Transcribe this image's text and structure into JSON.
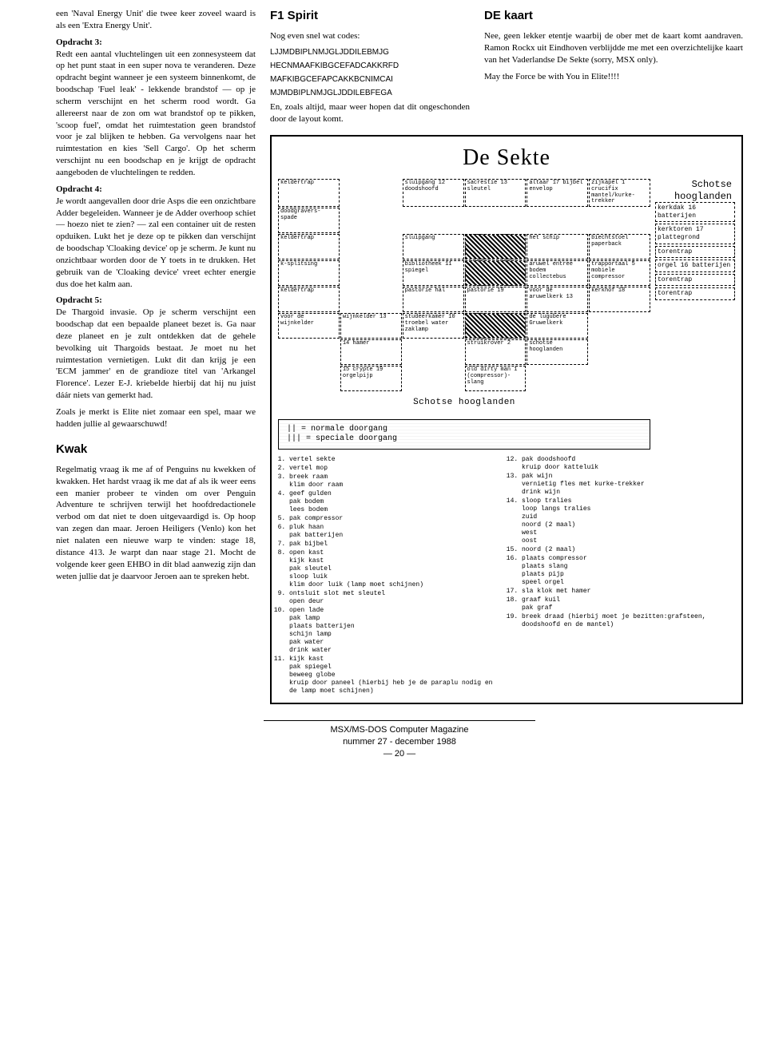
{
  "col1": {
    "intro": "een 'Naval Energy Unit' die twee keer zoveel waard is als een 'Extra Energy Unit'.",
    "op3h": "Opdracht 3:",
    "op3": "Redt een aantal vluchtelingen uit een zonnesysteem dat op het punt staat in een super nova te veranderen. Deze opdracht begint wanneer je een systeem binnenkomt, de boodschap 'Fuel leak' - lekkende brandstof — op je scherm verschijnt en het scherm rood wordt. Ga allereerst naar de zon om wat brandstof op te pikken, 'scoop fuel', omdat het ruimtestation geen brandstof voor je zal blijken te hebben. Ga vervolgens naar het ruimtestation en kies 'Sell Cargo'. Op het scherm verschijnt nu een boodschap en je krijgt de opdracht aangeboden de vluchtelingen te redden.",
    "op4h": "Opdracht 4:",
    "op4": "Je wordt aangevallen door drie Asps die een onzichtbare Adder begeleiden. Wanneer je de Adder overhoop schiet — hoezo niet te zien? — zal een container uit de resten opduiken. Lukt het je deze op te pikken dan verschijnt de boodschap 'Cloaking device' op je scherm. Je kunt nu onzichtbaar worden door de Y toets in te drukken. Het gebruik van de 'Cloaking device' vreet echter energie dus doe het kalm aan.",
    "op5h": "Opdracht 5:",
    "op5": "De Thargoid invasie. Op je scherm verschijnt een boodschap dat een bepaalde planeet bezet is. Ga naar deze planeet en je zult ontdekken dat de gehele bevolking uit Thargoids bestaat. Je moet nu het ruimtestation vernietigen. Lukt dit dan krijg je een 'ECM jammer' en de grandioze titel van 'Arkangel Florence'. Lezer E-J. kriebelde hierbij dat hij nu juist dáár niets van gemerkt had.",
    "op5b": "Zoals je merkt is Elite niet zomaar een spel, maar we hadden jullie al gewaarschuwd!",
    "kwakh": "Kwak",
    "kwak": "Regelmatig vraag ik me af of Penguins nu kwekken of kwakken. Het hardst vraag ik me dat af als ik weer eens een manier probeer te vinden om over Penguin Adventure te schrijven terwijl het hoofdredactionele verbod om dat niet te doen uitgevaardigd is. Op hoop van zegen dan maar. Jeroen Heiligers (Venlo) kon het niet nalaten een nieuwe warp te vinden: stage 18, distance 413. Je warpt dan naar stage 21. Mocht de volgende keer geen EHBO in dit blad aanwezig zijn dan weten jullie dat je daarvoor Jeroen aan te spreken hebt."
  },
  "col2": {
    "f1h": "F1 Spirit",
    "f1a": "Nog even snel wat codes:",
    "codes": [
      "LJJMDBIPLNMJGLJDDILEBMJG",
      "HECNMAAFKIBGCEFADCAKKRFD",
      "MAFKIBGCEFAPCAKKBCNIMCAI",
      "MJMDBIPLNMJGLJDDILEBFEGA"
    ],
    "f1b": "En, zoals altijd, maar weer hopen dat dit ongeschonden door de layout komt."
  },
  "col3": {
    "deh": "DE kaart",
    "de": "Nee, geen lekker etentje waarbij de ober met de kaart komt aandraven. Ramon Rockx uit Eindhoven verblijdde me met een overzichtelijke kaart van het Vaderlandse De Sekte (sorry, MSX only).",
    "de2": "May the Force be with You in Elite!!!!"
  },
  "map": {
    "title": "De Sekte",
    "rooms_r1": [
      "keldertrap",
      "",
      "sluipgang\n12\ndoodshoofd",
      "sacrestie\n13\nsleutel",
      "altaar\n17\nbijbel\nenvelop",
      "zijkapel\n1\ncrucifix\nmantel/kurke-trekker"
    ],
    "rooms_r2": [
      "doodgravers-\nspade",
      "",
      "",
      "",
      "",
      ""
    ],
    "rooms_r3": [
      "keldertrap",
      "",
      "sluipgang",
      "HATCH",
      "het schip",
      "biechtstoel\npaperback"
    ],
    "rooms_r4": [
      "k-splitsing",
      "",
      "bibliotheek\n11\nspiegel",
      "HATCH",
      "aruwel entree\nbodem\ncollectebus",
      "trapportaal\n5\nmobiele\ncompressor"
    ],
    "rooms_r5": [
      "keldertrap",
      "",
      "pastorie hal",
      "pastorie\n19",
      "voor de\naruwelkerk\n13",
      "kerkhof\n18"
    ],
    "rooms_r6": [
      "voor de\nwijnkelder",
      "wijnkelder\n13",
      "studeerkamer\n10\ntroebel water\nzaklamp",
      "HATCH",
      "de lugubere\nGruwelkerk",
      ""
    ],
    "rooms_r7": [
      "",
      "14\nhamer",
      "",
      "struikrover\n2",
      "schotse\nhooglanden",
      ""
    ],
    "rooms_r8": [
      "",
      "15\ncrypte 19\norgelpijp",
      "",
      "old dirty man\n1\n(compressor)-\nslang",
      "",
      ""
    ],
    "side_label": "Schotse hooglanden",
    "sideboxes": [
      "kerkdak\n16\nbatterijen",
      "kerktoren\n17\nplattegrond",
      "torentrap",
      "orgel\n16\nbatterijen",
      "torentrap",
      "torentrap"
    ],
    "schotse": "Schotse hooglanden",
    "legend1": "|| = normale doorgang",
    "legend2": "||| = speciale doorgang",
    "steps_a": [
      "vertel sekte",
      "vertel mop",
      "breek raam\nklim door raam",
      "geef gulden\npak bodem\nlees bodem",
      "pak compressor",
      "pluk haan\npak batterijen",
      "pak bijbel",
      "open kast\nkijk kast\npak sleutel\nsloop luik\nklim door luik (lamp moet schijnen)",
      "ontsluit slot met sleutel\nopen deur",
      "open lade\npak lamp\nplaats batterijen\nschijn lamp\npak water\ndrink water",
      "kijk kast\npak spiegel\nbeweeg globe\nkruip door paneel (hierbij heb je de paraplu nodig en de lamp moet schijnen)"
    ],
    "steps_b": [
      "pak doodshoofd\nkruip door katteluik",
      "pak wijn\nvernietig fles met kurke-trekker\ndrink wijn",
      "sloop tralies\nloop langs tralies\nzuid\nnoord (2 maal)\nwest\noost",
      "noord (2 maal)",
      "plaats compressor\nplaats slang\nplaats pijp\nspeel orgel",
      "sla klok met hamer",
      "graaf kuil\npak graf",
      "breek draad (hierbij moet je bezitten:grafsteen, doodshoofd en de mantel)"
    ],
    "steps_b_start": 12
  },
  "footer": {
    "l1": "MSX/MS-DOS Computer Magazine",
    "l2": "nummer 27 - december 1988",
    "l3": "— 20 —"
  }
}
